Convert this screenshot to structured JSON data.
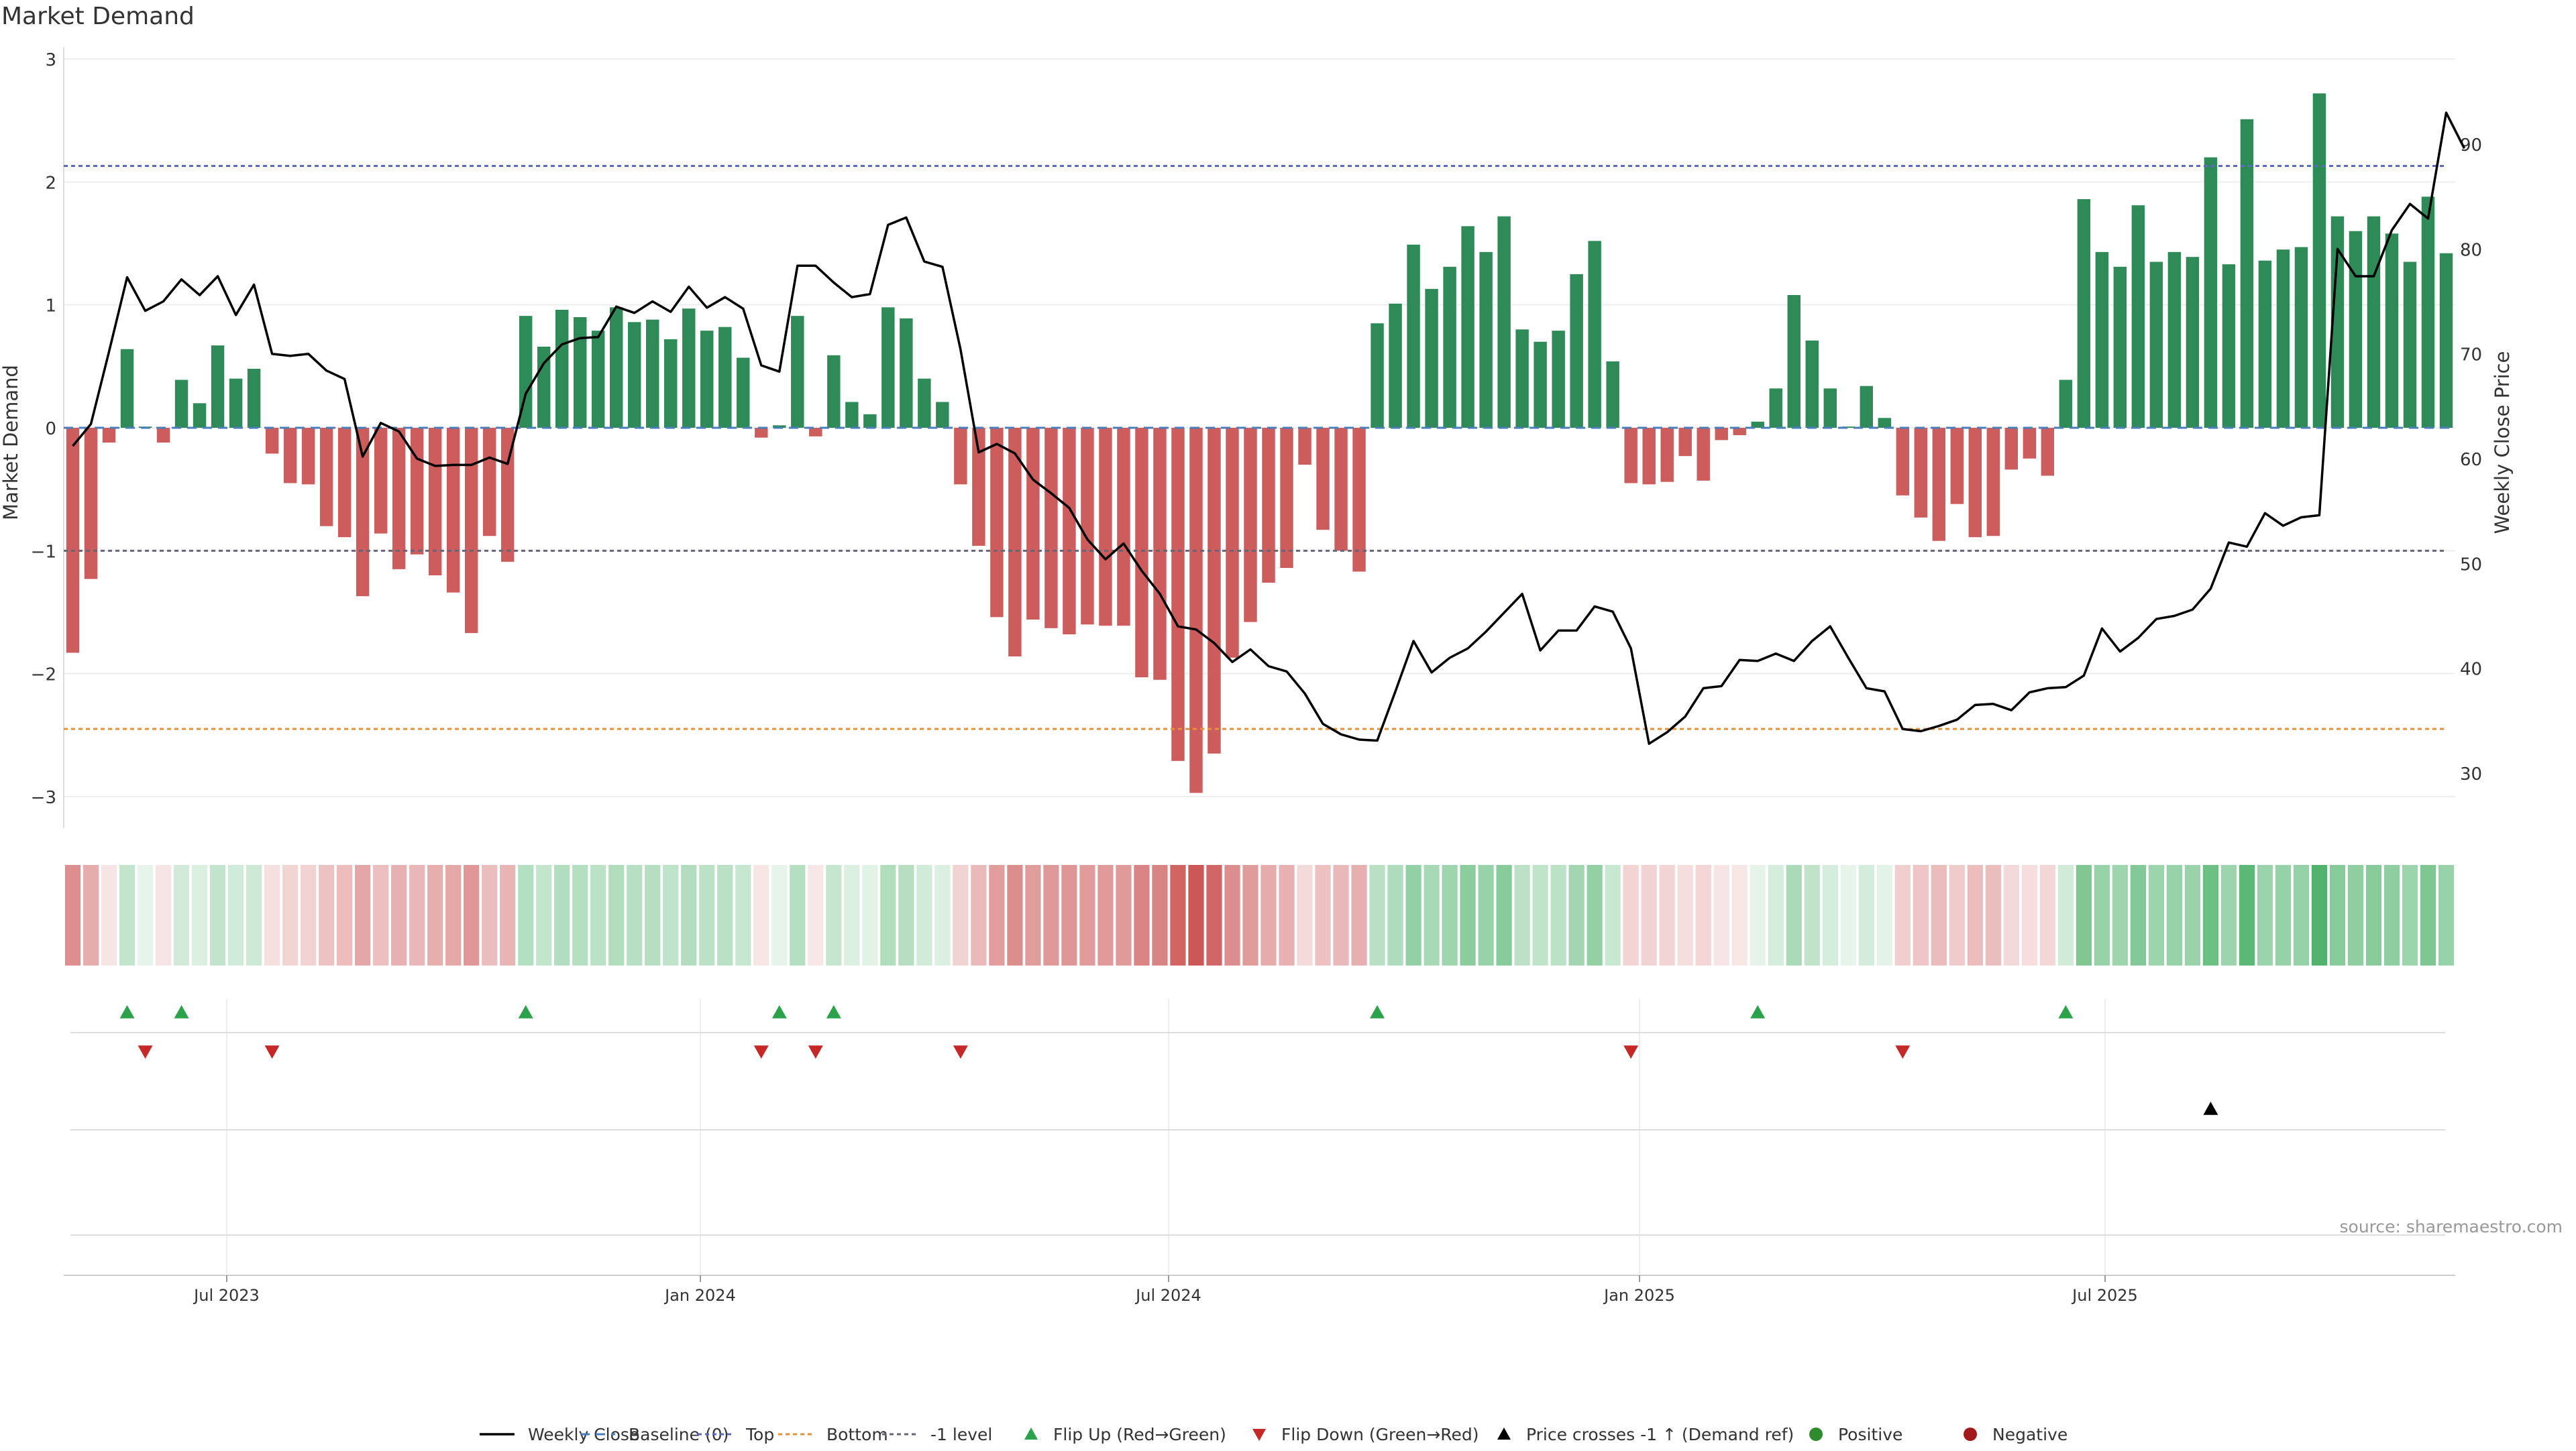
{
  "chart_data": {
    "type": "bar",
    "title": "Market Demand",
    "ylabel": "Market Demand",
    "y2label": "Weekly Close Price",
    "ylim": [
      -3.3,
      3.0
    ],
    "y2lim": [
      24.5,
      95.5
    ],
    "yticks": [
      "3",
      "2",
      "1",
      "0",
      "−1",
      "−2",
      "−3"
    ],
    "y2ticks": [
      "90",
      "80",
      "70",
      "60",
      "50",
      "40",
      "30"
    ],
    "x_date_labels": [
      "Jul 2023",
      "Jan 2024",
      "Jul 2024",
      "Jan 2025",
      "Jul 2025"
    ],
    "reference_lines": {
      "top": 2.13,
      "bottom": -2.45,
      "minus_one": -1.0,
      "baseline": 0
    },
    "demand": [
      -1.83,
      -1.23,
      -0.12,
      0.64,
      0.01,
      -0.12,
      0.39,
      0.2,
      0.67,
      0.4,
      0.48,
      -0.21,
      -0.45,
      -0.46,
      -0.8,
      -0.89,
      -1.37,
      -0.86,
      -1.15,
      -1.03,
      -1.2,
      -1.34,
      -1.67,
      -0.88,
      -1.09,
      0.91,
      0.66,
      0.96,
      0.9,
      0.79,
      0.98,
      0.86,
      0.88,
      0.72,
      0.97,
      0.79,
      0.82,
      0.57,
      -0.08,
      0.02,
      0.91,
      -0.07,
      0.59,
      0.21,
      0.11,
      0.98,
      0.89,
      0.4,
      0.21,
      -0.46,
      -0.96,
      -1.54,
      -1.86,
      -1.56,
      -1.63,
      -1.68,
      -1.6,
      -1.61,
      -1.61,
      -2.03,
      -2.05,
      -2.71,
      -2.97,
      -2.65,
      -1.87,
      -1.58,
      -1.26,
      -1.14,
      -0.3,
      -0.83,
      -1.0,
      -1.17,
      0.85,
      1.01,
      1.49,
      1.13,
      1.31,
      1.64,
      1.43,
      1.72,
      0.8,
      0.7,
      0.79,
      1.25,
      1.52,
      0.54,
      -0.45,
      -0.46,
      -0.44,
      -0.23,
      -0.43,
      -0.1,
      -0.06,
      0.05,
      0.32,
      1.08,
      0.71,
      0.32,
      0.01,
      0.34,
      0.08,
      -0.55,
      -0.73,
      -0.92,
      -0.62,
      -0.89,
      -0.88,
      -0.34,
      -0.25,
      -0.39,
      0.39,
      1.86,
      1.43,
      1.31,
      1.81,
      1.35,
      1.43,
      1.39,
      2.2,
      1.33,
      2.51,
      1.36,
      1.45,
      1.47,
      2.72,
      1.72,
      1.6,
      1.72,
      1.58,
      1.35,
      1.88,
      1.42
    ],
    "weekly_close": [
      61.2,
      63.3,
      70.2,
      77.3,
      74.1,
      75.0,
      77.1,
      75.6,
      77.4,
      73.7,
      76.6,
      70.0,
      69.8,
      70.0,
      68.4,
      67.6,
      60.2,
      63.4,
      62.6,
      60.0,
      59.3,
      59.4,
      59.4,
      60.1,
      59.5,
      66.2,
      69.1,
      70.9,
      71.5,
      71.6,
      74.5,
      73.9,
      75.0,
      74.0,
      76.4,
      74.4,
      75.4,
      74.3,
      68.9,
      68.3,
      78.4,
      78.4,
      76.8,
      75.4,
      75.7,
      82.3,
      83.0,
      78.8,
      78.3,
      70.4,
      60.6,
      61.4,
      60.5,
      58.0,
      56.7,
      55.3,
      52.3,
      50.4,
      51.9,
      49.3,
      47.1,
      44.0,
      43.7,
      42.4,
      40.6,
      41.8,
      40.2,
      39.7,
      37.6,
      34.7,
      33.7,
      33.2,
      33.1,
      37.8,
      42.6,
      39.6,
      41.0,
      41.9,
      43.5,
      45.3,
      47.1,
      41.7,
      43.6,
      43.6,
      45.9,
      45.4,
      41.9,
      32.8,
      33.9,
      35.4,
      38.1,
      38.3,
      40.8,
      40.7,
      41.4,
      40.7,
      42.6,
      44.0,
      41.0,
      38.1,
      37.8,
      34.2,
      34.0,
      34.5,
      35.1,
      36.5,
      36.6,
      36.0,
      37.7,
      38.1,
      38.2,
      39.3,
      43.8,
      41.6,
      42.9,
      44.7,
      45.0,
      45.6,
      47.6,
      52.0,
      51.6,
      54.8,
      53.6,
      54.4,
      54.6,
      80.0,
      77.4,
      77.4,
      81.8,
      84.3,
      82.9,
      93.0,
      89.6
    ],
    "flip_up_index": [
      3,
      6,
      25,
      39,
      42,
      72,
      93,
      110
    ],
    "flip_down_index": [
      4,
      11,
      38,
      41,
      49,
      86,
      101
    ],
    "price_cross_index": [
      118
    ],
    "legend": [
      "Weekly Close",
      "Baseline (0)",
      "Top",
      "Bottom",
      "-1 level",
      "Flip Up (Red→Green)",
      "Flip Down (Green→Red)",
      "Price crosses -1 ↑ (Demand ref)",
      "Positive",
      "Negative"
    ],
    "colors": {
      "positive": "#2e8b57",
      "negative": "#cd5c5c",
      "price_line": "#000000",
      "baseline": "#4a7ebb",
      "top": "#5c6bc0",
      "bottom": "#e69138",
      "minus_one": "#666677",
      "flip_up": "#2ca24a",
      "flip_down": "#c62828",
      "cross": "#000000",
      "positive_dot": "#2e8b2e",
      "negative_dot": "#a31a1a"
    }
  },
  "source": "source: sharemaestro.com"
}
